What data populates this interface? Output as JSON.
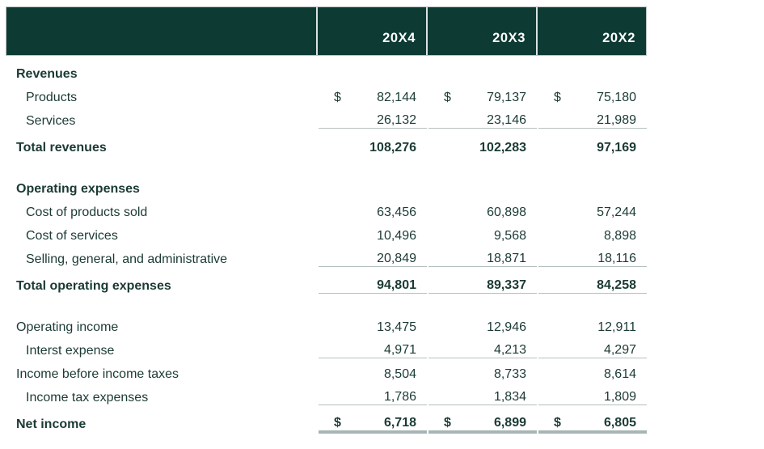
{
  "table": {
    "header": {
      "columns": [
        "",
        "20X4",
        "20X3",
        "20X2"
      ],
      "bg_color": "#0e3a34",
      "text_color": "#ffffff"
    },
    "text_color": "#1b3a34",
    "thin_rule_color": "#b4bfbf",
    "thick_rule_color": "#a7b6b4",
    "currency_symbol": "$",
    "rows": [
      {
        "label": "Revenues",
        "style": "section",
        "values": [
          "",
          "",
          ""
        ]
      },
      {
        "label": "Products",
        "style": "item",
        "dollar": true,
        "values": [
          "82,144",
          "79,137",
          "75,180"
        ]
      },
      {
        "label": "Services",
        "style": "item",
        "values": [
          "26,132",
          "23,146",
          "21,989"
        ],
        "rule_below": "thin"
      },
      {
        "label": "Total revenues",
        "style": "total",
        "values": [
          "108,276",
          "102,283",
          "97,169"
        ]
      },
      {
        "style": "spacer"
      },
      {
        "label": "Operating expenses",
        "style": "section",
        "values": [
          "",
          "",
          ""
        ]
      },
      {
        "label": "Cost of products sold",
        "style": "item",
        "values": [
          "63,456",
          "60,898",
          "57,244"
        ]
      },
      {
        "label": "Cost of services",
        "style": "item",
        "values": [
          "10,496",
          "9,568",
          "8,898"
        ]
      },
      {
        "label": "Selling, general, and administrative",
        "style": "item",
        "values": [
          "20,849",
          "18,871",
          "18,116"
        ],
        "rule_below": "thin"
      },
      {
        "label": "Total operating expenses",
        "style": "total",
        "values": [
          "94,801",
          "89,337",
          "84,258"
        ],
        "rule_below": "thin"
      },
      {
        "style": "spacer"
      },
      {
        "label": "Operating income",
        "style": "plain",
        "values": [
          "13,475",
          "12,946",
          "12,911"
        ]
      },
      {
        "label": "Interst expense",
        "style": "item",
        "values": [
          "4,971",
          "4,213",
          "4,297"
        ],
        "rule_below": "thin"
      },
      {
        "label": "Income before income taxes",
        "style": "plain",
        "values": [
          "8,504",
          "8,733",
          "8,614"
        ]
      },
      {
        "label": "Income tax expenses",
        "style": "item",
        "values": [
          "1,786",
          "1,834",
          "1,809"
        ],
        "rule_below": "thin"
      },
      {
        "label": "Net income",
        "style": "total",
        "dollar": true,
        "values": [
          "6,718",
          "6,899",
          "6,805"
        ],
        "rule_below": "thick"
      }
    ]
  }
}
